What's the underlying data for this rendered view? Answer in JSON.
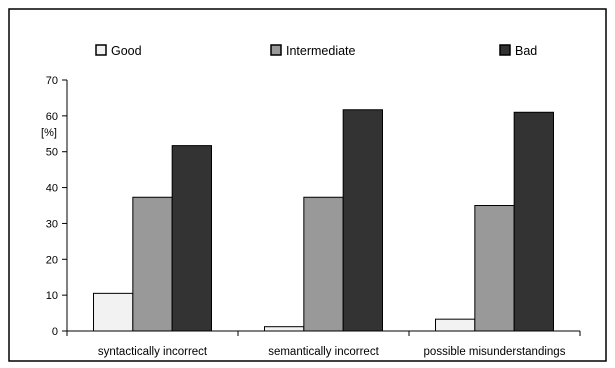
{
  "chart_data": {
    "type": "bar",
    "title": "",
    "xlabel": "",
    "ylabel": "[%]",
    "ylim": [
      0,
      70
    ],
    "yticks": [
      0,
      10,
      20,
      30,
      40,
      50,
      60,
      70
    ],
    "grid": false,
    "legend_position": "top",
    "categories": [
      "syntactically incorrect",
      "semantically incorrect",
      "possible misunderstandings"
    ],
    "series": [
      {
        "name": "Good",
        "values": [
          10.5,
          1.2,
          3.3
        ],
        "color": "#f2f2f2"
      },
      {
        "name": "Intermediate",
        "values": [
          37.3,
          37.3,
          35.0
        ],
        "color": "#999999"
      },
      {
        "name": "Bad",
        "values": [
          51.7,
          61.7,
          61.0
        ],
        "color": "#333333"
      }
    ]
  }
}
